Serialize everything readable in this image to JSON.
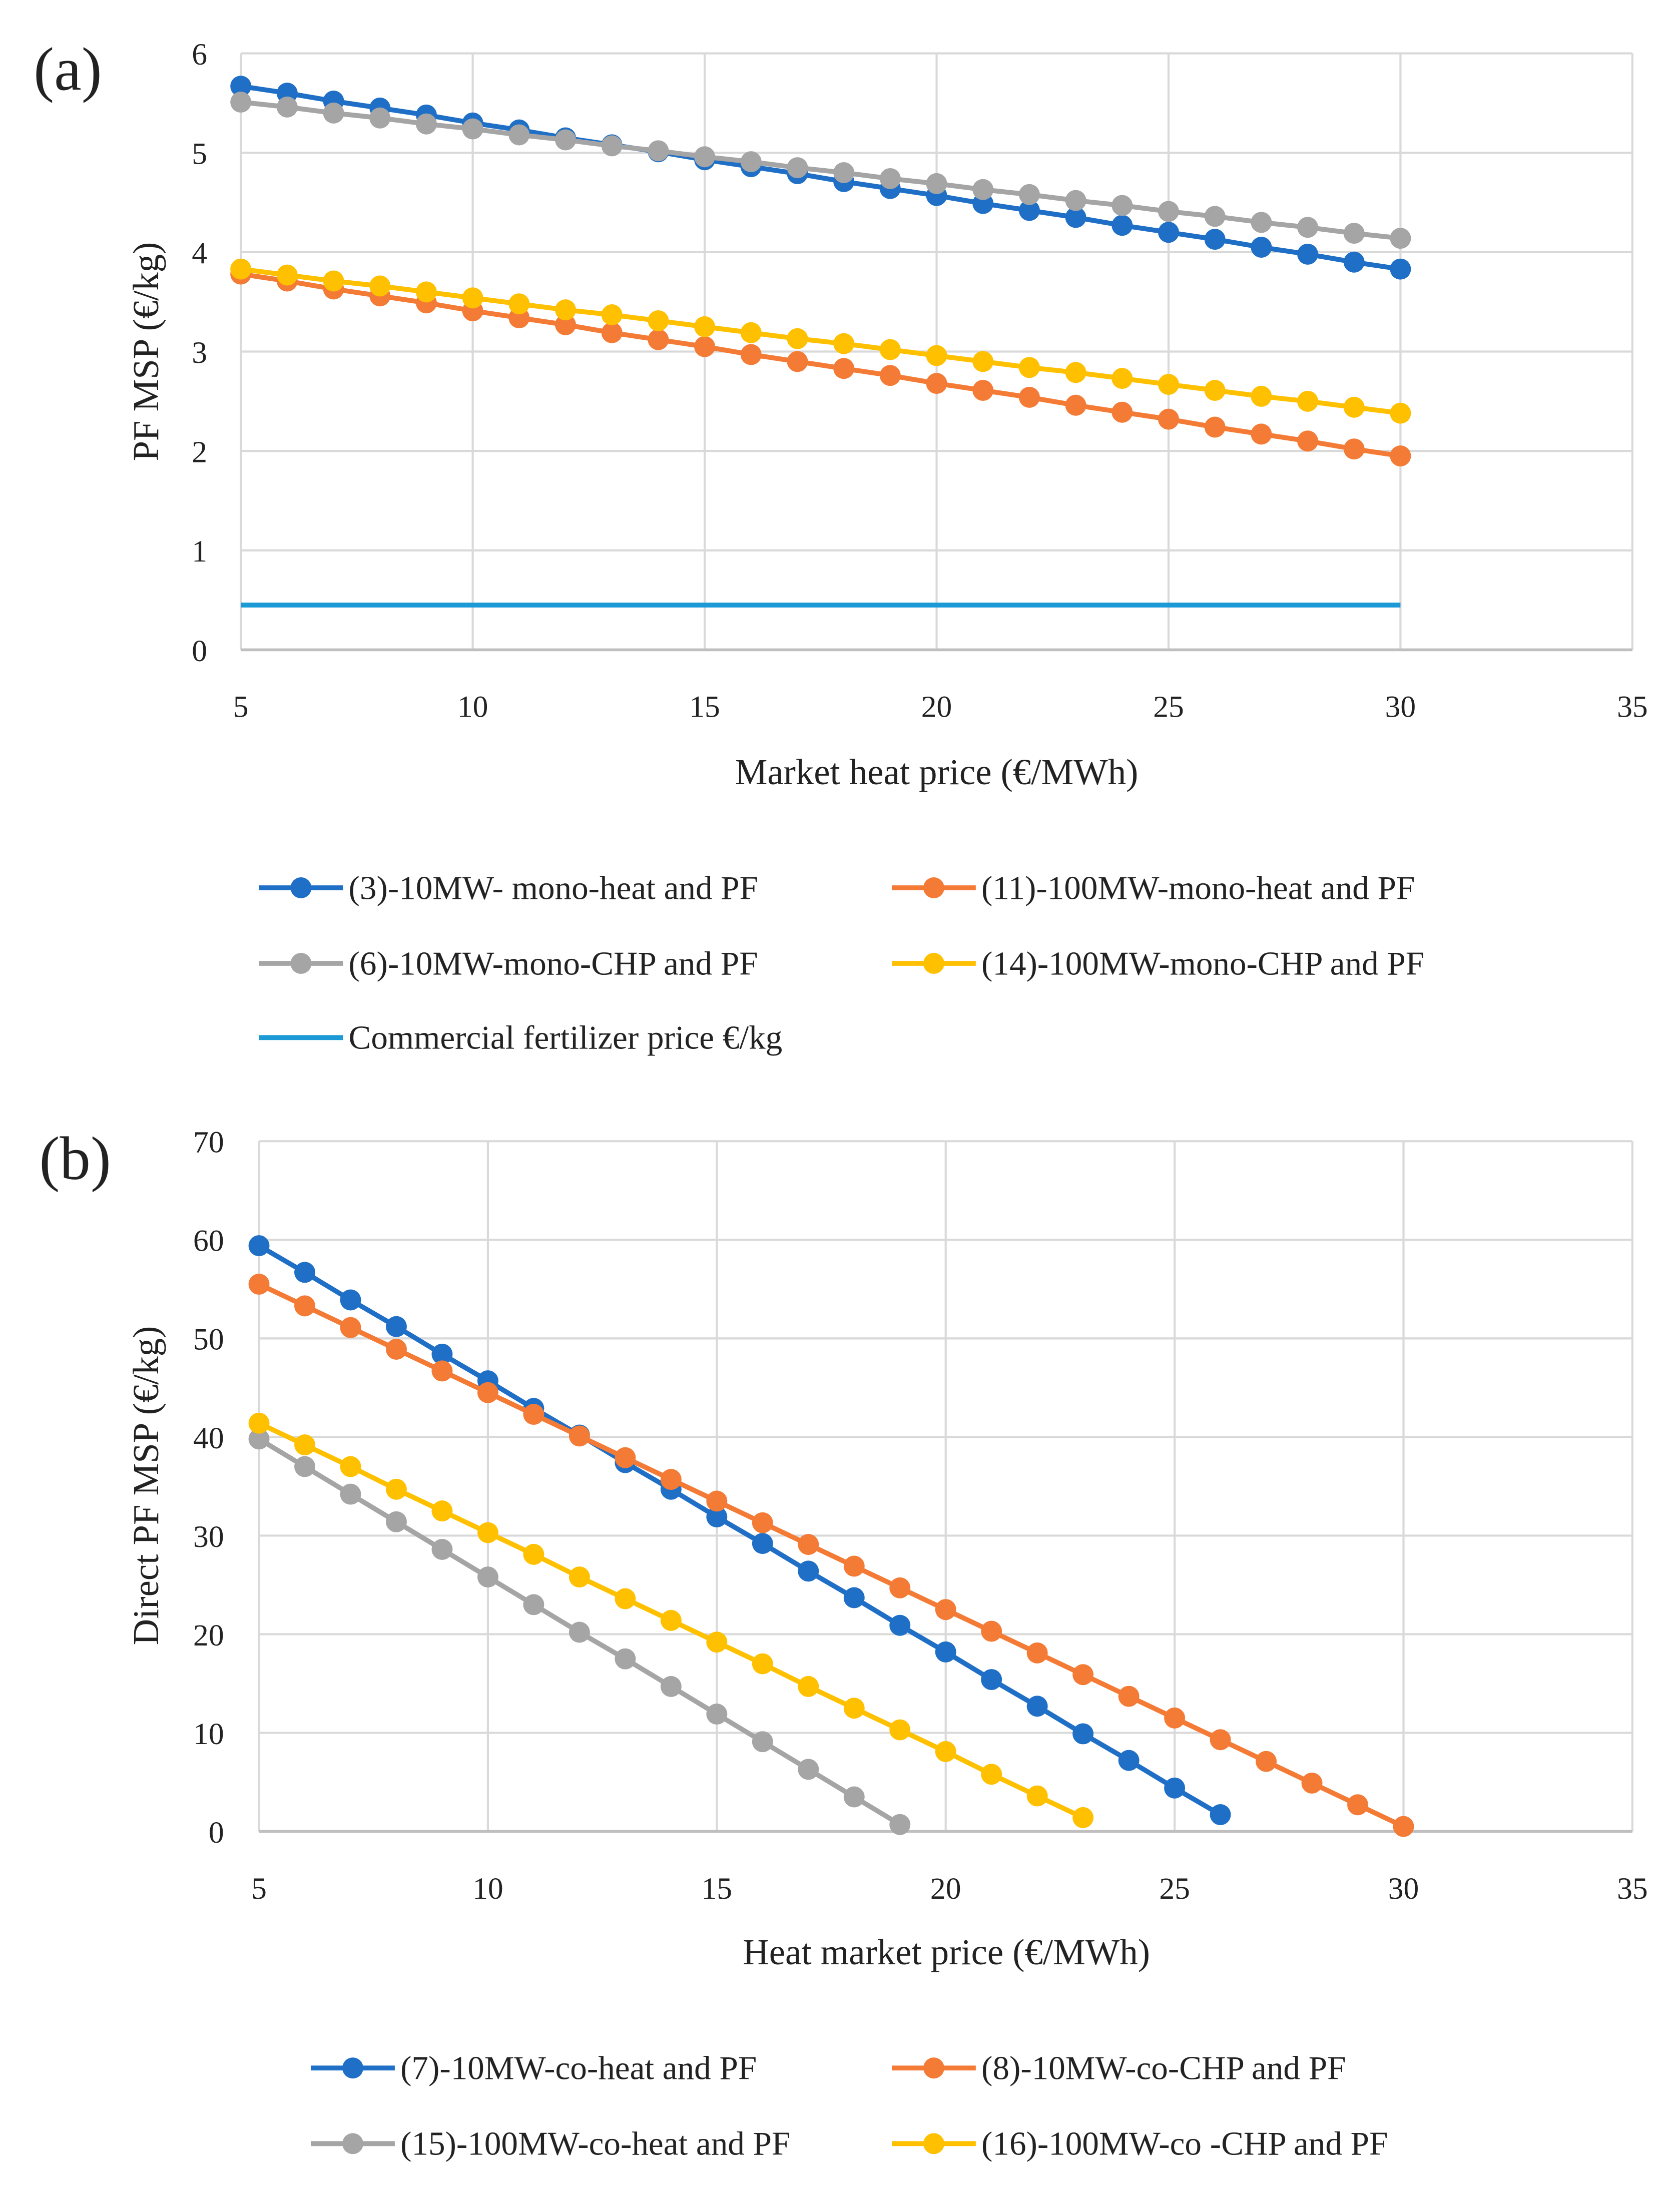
{
  "colors": {
    "c3": "#1f6fc6",
    "c11": "#f47b36",
    "c6": "#a5a5a5",
    "c14": "#ffc000",
    "commercial": "#1b9ad6",
    "grid": "#d9d9d9"
  },
  "chart_data": [
    {
      "type": "line",
      "panel_label": "(a)",
      "xlabel": "Market heat price (€/MWh)",
      "ylabel": "PF MSP (€/kg)",
      "xlim": [
        5,
        35
      ],
      "ylim": [
        0,
        6
      ],
      "xticks": [
        "5",
        "10",
        "15",
        "20",
        "25",
        "30",
        "35"
      ],
      "yticks": [
        "0",
        "1",
        "2",
        "3",
        "4",
        "5",
        "6"
      ],
      "grid": true,
      "legend_position": "bottom",
      "series": [
        {
          "name": "(3)-10MW- mono-heat and PF",
          "color_key": "c3",
          "markers": true,
          "x0": 5,
          "values": [
            5.67,
            5.6,
            5.52,
            5.45,
            5.38,
            5.3,
            5.23,
            5.15,
            5.08,
            5.01,
            4.93,
            4.86,
            4.79,
            4.71,
            4.64,
            4.57,
            4.49,
            4.42,
            4.35,
            4.27,
            4.2,
            4.13,
            4.05,
            3.98,
            3.9,
            3.83
          ]
        },
        {
          "name": "(11)-100MW-mono-heat and PF",
          "color_key": "c11",
          "markers": true,
          "x0": 5,
          "values": [
            3.78,
            3.71,
            3.63,
            3.56,
            3.49,
            3.41,
            3.34,
            3.27,
            3.19,
            3.12,
            3.05,
            2.97,
            2.9,
            2.83,
            2.76,
            2.68,
            2.61,
            2.54,
            2.46,
            2.39,
            2.32,
            2.24,
            2.17,
            2.1,
            2.02,
            1.95
          ]
        },
        {
          "name": "(6)-10MW-mono-CHP and PF",
          "color_key": "c6",
          "markers": true,
          "x0": 5,
          "values": [
            5.51,
            5.46,
            5.4,
            5.35,
            5.29,
            5.24,
            5.18,
            5.13,
            5.07,
            5.02,
            4.96,
            4.91,
            4.85,
            4.8,
            4.74,
            4.69,
            4.63,
            4.58,
            4.52,
            4.47,
            4.41,
            4.36,
            4.3,
            4.25,
            4.19,
            4.14
          ]
        },
        {
          "name": "(14)-100MW-mono-CHP and PF",
          "color_key": "c14",
          "markers": true,
          "x0": 5,
          "values": [
            3.83,
            3.77,
            3.71,
            3.66,
            3.6,
            3.54,
            3.48,
            3.42,
            3.37,
            3.31,
            3.25,
            3.19,
            3.13,
            3.08,
            3.02,
            2.96,
            2.9,
            2.84,
            2.79,
            2.73,
            2.67,
            2.61,
            2.55,
            2.5,
            2.44,
            2.38
          ]
        },
        {
          "name": "Commercial fertilizer price €/kg",
          "color_key": "commercial",
          "markers": false,
          "x": [
            5,
            30
          ],
          "values": [
            0.45,
            0.45
          ]
        }
      ]
    },
    {
      "type": "line",
      "panel_label": "(b)",
      "xlabel": "Heat market price (€/MWh)",
      "ylabel": "Direct PF MSP (€/kg)",
      "xlim": [
        5,
        35
      ],
      "ylim": [
        0,
        70
      ],
      "xticks": [
        "5",
        "10",
        "15",
        "20",
        "25",
        "30",
        "35"
      ],
      "yticks": [
        "0",
        "10",
        "20",
        "30",
        "40",
        "50",
        "60",
        "70"
      ],
      "grid": true,
      "legend_position": "bottom",
      "series": [
        {
          "name": "(7)-10MW-co-heat and PF",
          "color_key": "c3",
          "markers": true,
          "x0": 5,
          "values": [
            59.4,
            56.7,
            53.9,
            51.2,
            48.4,
            45.7,
            42.9,
            40.2,
            37.4,
            34.7,
            31.9,
            29.2,
            26.4,
            23.7,
            20.9,
            18.2,
            15.4,
            12.7,
            9.9,
            7.2,
            4.4,
            1.7
          ]
        },
        {
          "name": "(8)-10MW-co-CHP and PF",
          "color_key": "c11",
          "markers": true,
          "x0": 5,
          "values": [
            55.5,
            53.3,
            51.1,
            48.9,
            46.7,
            44.5,
            42.3,
            40.1,
            37.9,
            35.7,
            33.5,
            31.3,
            29.1,
            26.9,
            24.7,
            22.5,
            20.3,
            18.1,
            15.9,
            13.7,
            11.5,
            9.3,
            7.1,
            4.9,
            2.7,
            0.5
          ]
        },
        {
          "name": "(15)-100MW-co-heat and PF",
          "color_key": "c6",
          "markers": true,
          "x0": 5,
          "values": [
            39.8,
            37.0,
            34.2,
            31.4,
            28.6,
            25.8,
            23.0,
            20.2,
            17.5,
            14.7,
            11.9,
            9.1,
            6.3,
            3.5,
            0.7
          ]
        },
        {
          "name": "(16)-100MW-co -CHP and PF",
          "color_key": "c14",
          "markers": true,
          "x0": 5,
          "values": [
            41.4,
            39.2,
            37.0,
            34.7,
            32.5,
            30.3,
            28.1,
            25.8,
            23.6,
            21.4,
            19.2,
            17.0,
            14.7,
            12.5,
            10.3,
            8.1,
            5.8,
            3.6,
            1.4
          ]
        }
      ]
    }
  ]
}
